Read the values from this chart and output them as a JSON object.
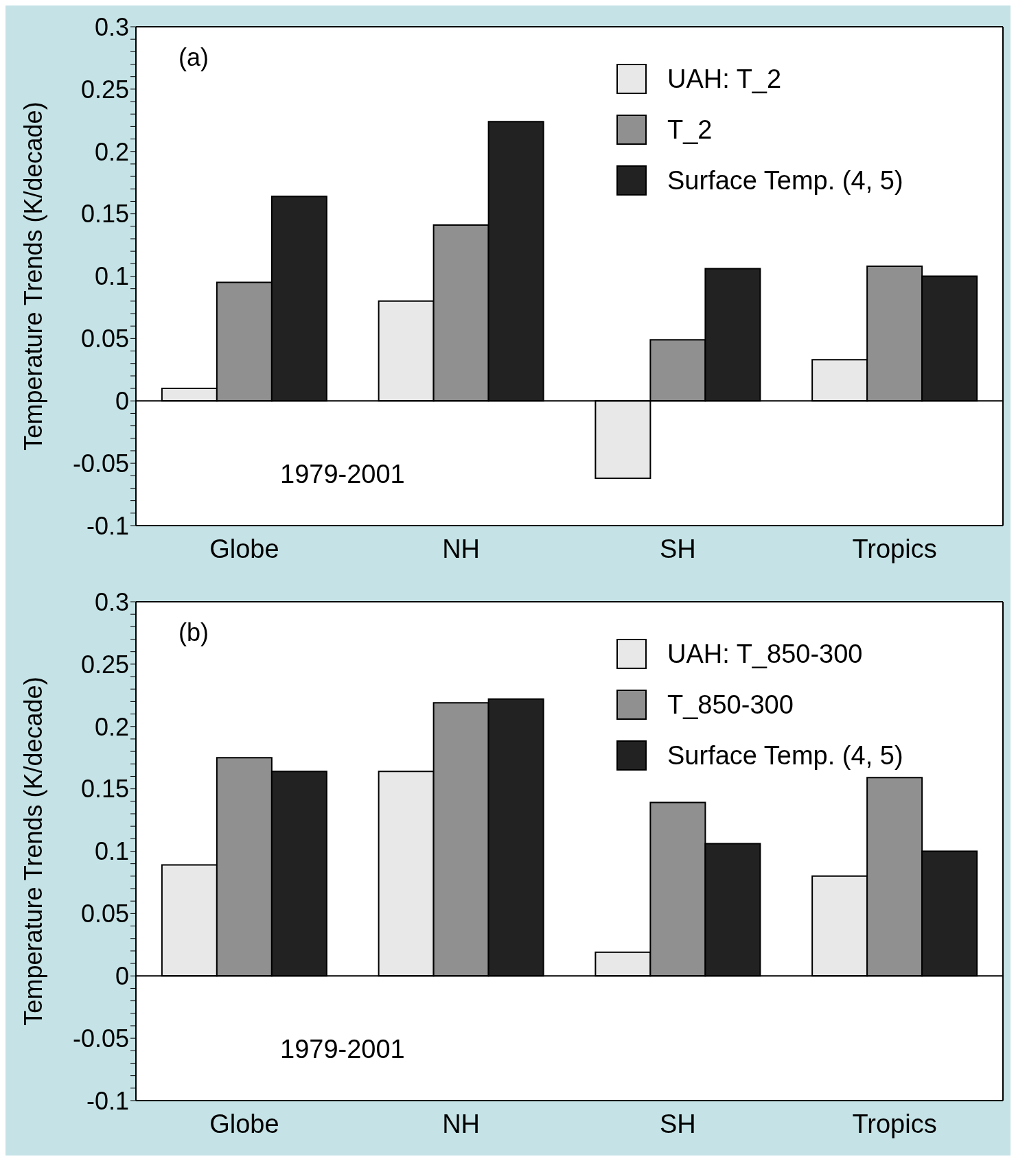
{
  "chart_data": [
    {
      "type": "bar",
      "ylabel": "Temperature Trends (K/decade)",
      "categories": [
        "Globe",
        "NH",
        "SH",
        "Tropics"
      ],
      "series": [
        {
          "name": "UAH: T_2",
          "color": "#e8e8e8",
          "values": [
            0.01,
            0.08,
            -0.062,
            0.033
          ]
        },
        {
          "name": "T_2",
          "color": "#909090",
          "values": [
            0.095,
            0.141,
            0.049,
            0.108
          ]
        },
        {
          "name": "Surface Temp. (4, 5)",
          "color": "#222222",
          "values": [
            0.164,
            0.224,
            0.106,
            0.1
          ]
        }
      ],
      "ylim": [
        -0.1,
        0.3
      ],
      "yticks": [
        -0.1,
        {
          "value": -0.09,
          "label": null
        },
        {
          "value": -0.08,
          "label": null
        },
        {
          "value": -0.07,
          "label": null
        },
        {
          "value": -0.06,
          "label": null
        },
        -0.05,
        {
          "value": -0.04,
          "label": null
        },
        {
          "value": -0.03,
          "label": null
        },
        {
          "value": -0.02,
          "label": null
        },
        {
          "value": -0.01,
          "label": null
        },
        0,
        {
          "value": 0.01,
          "label": null
        },
        {
          "value": 0.02,
          "label": null
        },
        {
          "value": 0.03,
          "label": null
        },
        {
          "value": 0.04,
          "label": null
        },
        0.05,
        {
          "value": 0.06,
          "label": null
        },
        {
          "value": 0.07,
          "label": null
        },
        {
          "value": 0.08,
          "label": null
        },
        {
          "value": 0.09,
          "label": null
        },
        0.1,
        {
          "value": 0.11,
          "label": null
        },
        {
          "value": 0.12,
          "label": null
        },
        {
          "value": 0.13,
          "label": null
        },
        {
          "value": 0.14,
          "label": null
        },
        0.15,
        {
          "value": 0.16,
          "label": null
        },
        {
          "value": 0.17,
          "label": null
        },
        {
          "value": 0.18,
          "label": null
        },
        {
          "value": 0.19,
          "label": null
        },
        0.2,
        {
          "value": 0.21,
          "label": null
        },
        {
          "value": 0.22,
          "label": null
        },
        {
          "value": 0.23,
          "label": null
        },
        {
          "value": 0.24,
          "label": null
        },
        0.25,
        {
          "value": 0.26,
          "label": null
        },
        {
          "value": 0.27,
          "label": null
        },
        {
          "value": 0.28,
          "label": null
        },
        {
          "value": 0.29,
          "label": null
        },
        0.3
      ],
      "ref_lines": [
        {
          "axis": "y",
          "value": 0,
          "color": "#000000"
        }
      ],
      "annotations": [
        "(a)",
        "1979-2001"
      ],
      "legend": "top right",
      "grid": false
    },
    {
      "type": "bar",
      "ylabel": "Temperature Trends (K/decade)",
      "categories": [
        "Globe",
        "NH",
        "SH",
        "Tropics"
      ],
      "series": [
        {
          "name": "UAH: T_850-300",
          "color": "#e8e8e8",
          "values": [
            0.089,
            0.164,
            0.019,
            0.08
          ]
        },
        {
          "name": "T_850-300",
          "color": "#909090",
          "values": [
            0.175,
            0.219,
            0.139,
            0.159
          ]
        },
        {
          "name": "Surface Temp. (4, 5)",
          "color": "#222222",
          "values": [
            0.164,
            0.222,
            0.106,
            0.1
          ]
        }
      ],
      "ylim": [
        -0.1,
        0.3
      ],
      "yticks": [
        -0.1,
        {
          "value": -0.09,
          "label": null
        },
        {
          "value": -0.08,
          "label": null
        },
        {
          "value": -0.07,
          "label": null
        },
        {
          "value": -0.06,
          "label": null
        },
        -0.05,
        {
          "value": -0.04,
          "label": null
        },
        {
          "value": -0.03,
          "label": null
        },
        {
          "value": -0.02,
          "label": null
        },
        {
          "value": -0.01,
          "label": null
        },
        0,
        {
          "value": 0.01,
          "label": null
        },
        {
          "value": 0.02,
          "label": null
        },
        {
          "value": 0.03,
          "label": null
        },
        {
          "value": 0.04,
          "label": null
        },
        0.05,
        {
          "value": 0.06,
          "label": null
        },
        {
          "value": 0.07,
          "label": null
        },
        {
          "value": 0.08,
          "label": null
        },
        {
          "value": 0.09,
          "label": null
        },
        0.1,
        {
          "value": 0.11,
          "label": null
        },
        {
          "value": 0.12,
          "label": null
        },
        {
          "value": 0.13,
          "label": null
        },
        {
          "value": 0.14,
          "label": null
        },
        0.15,
        {
          "value": 0.16,
          "label": null
        },
        {
          "value": 0.17,
          "label": null
        },
        {
          "value": 0.18,
          "label": null
        },
        {
          "value": 0.19,
          "label": null
        },
        0.2,
        {
          "value": 0.21,
          "label": null
        },
        {
          "value": 0.22,
          "label": null
        },
        {
          "value": 0.23,
          "label": null
        },
        {
          "value": 0.24,
          "label": null
        },
        0.25,
        {
          "value": 0.26,
          "label": null
        },
        {
          "value": 0.27,
          "label": null
        },
        {
          "value": 0.28,
          "label": null
        },
        {
          "value": 0.29,
          "label": null
        },
        0.3
      ],
      "ref_lines": [
        {
          "axis": "y",
          "value": 0,
          "color": "#000000"
        }
      ],
      "annotations": [
        "(b)",
        "1979-2001"
      ],
      "legend": "top right",
      "grid": false
    }
  ]
}
